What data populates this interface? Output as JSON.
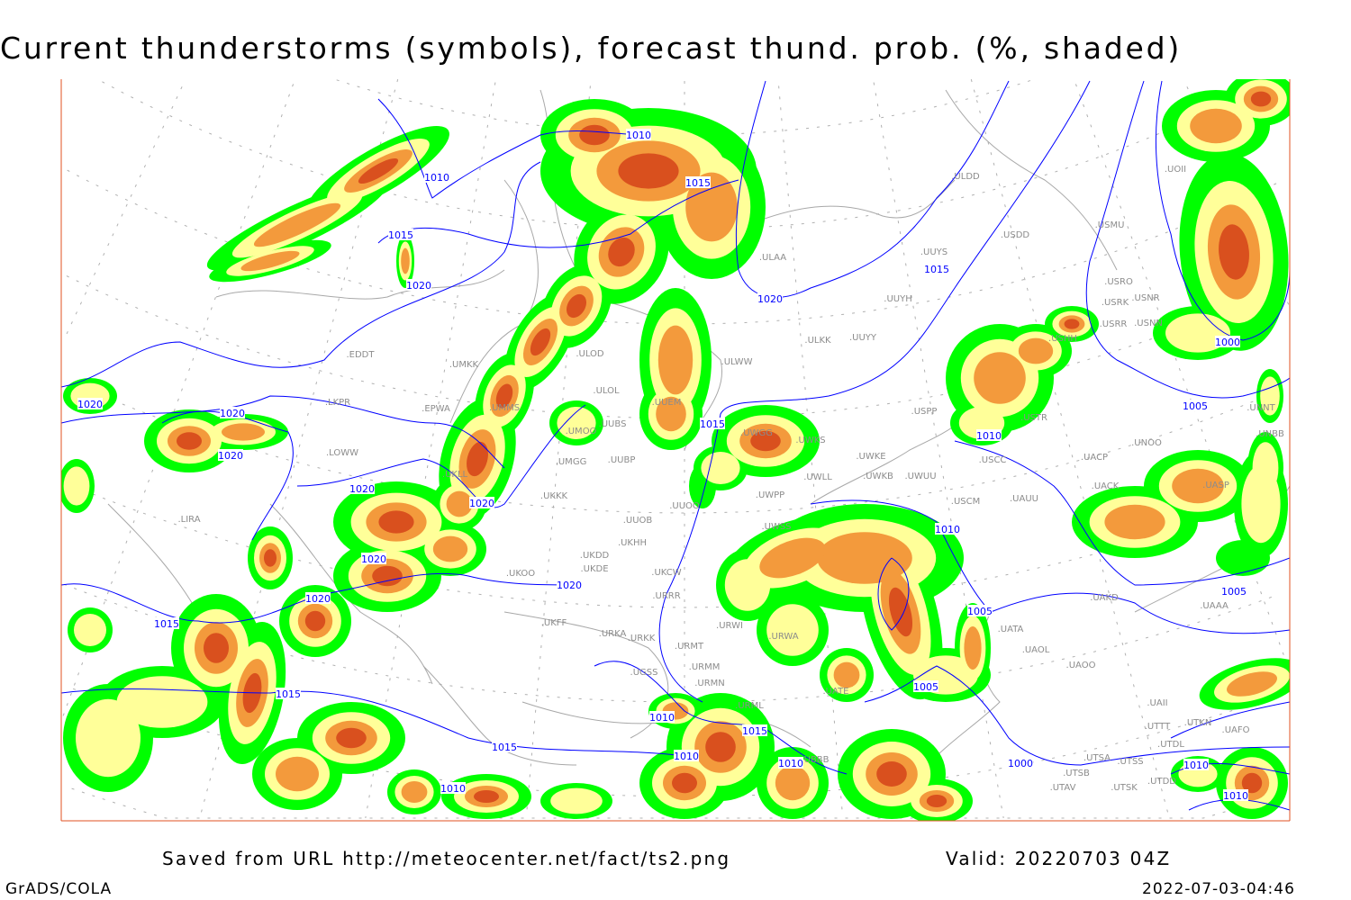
{
  "title": "Current thunderstorms (symbols), forecast thund. prob. (%, shaded)",
  "footer": {
    "source": "Saved from URL http://meteocenter.net/fact/ts2.png",
    "valid": "Valid: 20220703 04Z",
    "software": "GrADS/COLA",
    "timestamp": "2022-07-03-04:46"
  },
  "colors": {
    "prob_low": "#00ff00",
    "prob_mid": "#ffff99",
    "prob_high": "#f39a3c",
    "prob_max": "#d9501e",
    "isobar": "#0000ff",
    "coastline_and_labels": "#999999",
    "frame_edge": "#e05020"
  },
  "isobar_labels": [
    "1010",
    "1010",
    "1015",
    "1015",
    "1020",
    "1020",
    "1015",
    "1000",
    "1005",
    "1010",
    "1020",
    "1020",
    "1020",
    "1020",
    "1020",
    "1015",
    "1020",
    "1020",
    "1020",
    "1015",
    "1010",
    "1005",
    "1005",
    "1015",
    "1015",
    "1015",
    "1010",
    "1010",
    "1010",
    "1000",
    "1005",
    "1010",
    "1010",
    "1010"
  ],
  "stations": [
    "EDDT",
    "UMKK",
    "LKPR",
    "EPWA",
    "LOWW",
    "LIRA",
    "UKLL",
    "UMMS",
    "UMOO",
    "UMGG",
    "UUBP",
    "UKKK",
    "UUOO",
    "UUOB",
    "UKHH",
    "UKDD",
    "UKDE",
    "UKOO",
    "UKFF",
    "URKA",
    "URKK",
    "URMT",
    "URMM",
    "URMN",
    "URML",
    "ULOD",
    "ULOL",
    "ULWW",
    "ULKK",
    "UUYY",
    "ULAA",
    "ULDD",
    "USDD",
    "UUYS",
    "UUYH",
    "USMU",
    "USRO",
    "USNR",
    "USRK",
    "USRR",
    "USNN",
    "USHH",
    "UOII",
    "UNNT",
    "UNBB",
    "USPP",
    "USTR",
    "USCC",
    "UWKE",
    "UWKB",
    "UWUU",
    "UWLL",
    "UWPP",
    "USCM",
    "UAUU",
    "UACP",
    "UACK",
    "UNOO",
    "UASP",
    "UAKD",
    "UAAA",
    "UATA",
    "UAOL",
    "UAOO",
    "UATE",
    "UTSA",
    "UTSB",
    "UTSS",
    "UTAV",
    "UTSK",
    "UTDD",
    "UTDL",
    "UTTT",
    "UTKN",
    "UAFO",
    "UAII",
    "UWGG",
    "UWKS",
    "UUEM",
    "UUBS",
    "UKCW",
    "URRR",
    "URWI",
    "URWA",
    "UWSS",
    "UGSS",
    "UBBB"
  ]
}
